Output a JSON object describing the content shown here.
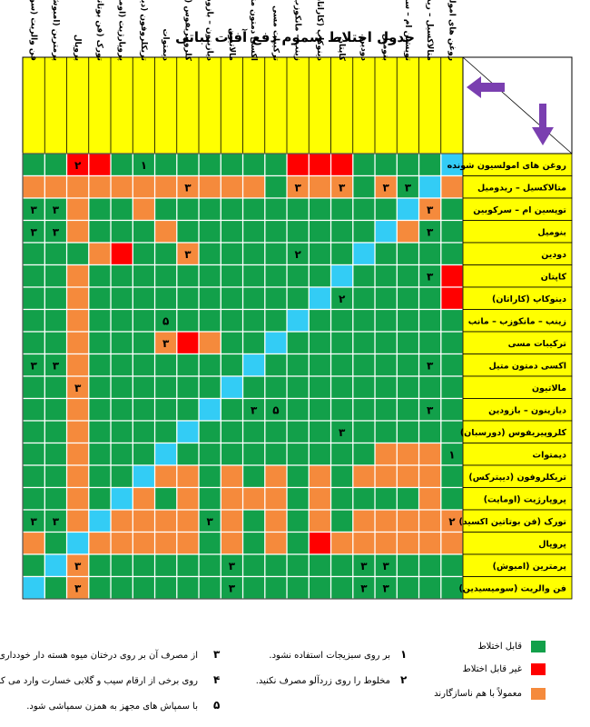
{
  "title": "جدول اختلاط سموم دفع آفات نباتی",
  "products": [
    "روغن های امولسیون شونده",
    "متالاکسیل – ریدومیل",
    "توپسین ام – سرکوبین",
    "بنومیل",
    "دودین",
    "کاپتان",
    "دینوکاپ (کاراتان)",
    "زینب – مانکوزب – مانب",
    "ترکیبات مسی",
    "اکسی دمتون متیل",
    "مالاتیون",
    "دیازینون – بازودین",
    "کلروپیریفوس (دورسبان)",
    "دیمتوات",
    "تریکلروفون (دیپترکس)",
    "پروپارژیت (اومایت)",
    "تورک (فن بوتاتین اکسید)",
    "پروپال",
    "پرمترین (امبوش)",
    "فن والریت (سومیسیدین)"
  ],
  "matrix": [
    "FGGGGRRRGGGGGGGGRRGG",
    "OFGOGOOOGOOOOOOOOOOO",
    "GOFGGGGGGGGGGGOGGOGG",
    "GGOFGGGGGGGGGOGGGOGG",
    "GGGGFGGGGGGGOGGROGGG",
    "RGGGGFGGGGGGGGGGGOGG",
    "RGGGGGFGGGGGGGGGGOGG",
    "GGGGGGGFGGGGGGGGGOGG",
    "GGGGGGGGFGGOROGGGOGG",
    "GGGGGGGGGFGGGGGGGOGG",
    "GGGGGGGGGGFGGGGGGOGG",
    "GGGGGGGGGGGFGGGGGOGG",
    "GGGGGGGGGGGGFGGGGOGG",
    "GOOOGGGGGGGGGFGGGOGG",
    "GOOOOGOGOGOGOOFGGOGG",
    "GOGGGGOGOOOGOGOFGOGG",
    "OOOOOGOGOGOGOOOOFOGG",
    "OOOOOORGOGOGOOOOOFGO",
    "GGGGGGGGGGGGGGGGGOFG",
    "GGGGGGGGGGGGGGGGGOGF"
  ],
  "cell_numbers": [
    {
      "row": 0,
      "col": 14,
      "value": "۱"
    },
    {
      "row": 0,
      "col": 17,
      "value": "۲"
    },
    {
      "row": 1,
      "col": 2,
      "value": "۳"
    },
    {
      "row": 1,
      "col": 3,
      "value": "۳"
    },
    {
      "row": 1,
      "col": 5,
      "value": "۳"
    },
    {
      "row": 1,
      "col": 7,
      "value": "۳"
    },
    {
      "row": 1,
      "col": 12,
      "value": "۳"
    },
    {
      "row": 2,
      "col": 1,
      "value": "۳"
    },
    {
      "row": 2,
      "col": 18,
      "value": "۳"
    },
    {
      "row": 2,
      "col": 19,
      "value": "۳"
    },
    {
      "row": 3,
      "col": 1,
      "value": "۳"
    },
    {
      "row": 3,
      "col": 18,
      "value": "۳"
    },
    {
      "row": 3,
      "col": 19,
      "value": "۳"
    },
    {
      "row": 4,
      "col": 7,
      "value": "۲"
    },
    {
      "row": 4,
      "col": 12,
      "value": "۳"
    },
    {
      "row": 5,
      "col": 1,
      "value": "۳"
    },
    {
      "row": 6,
      "col": 5,
      "value": "۲"
    },
    {
      "row": 7,
      "col": 13,
      "value": "۵"
    },
    {
      "row": 8,
      "col": 13,
      "value": "۳"
    },
    {
      "row": 9,
      "col": 1,
      "value": "۳"
    },
    {
      "row": 9,
      "col": 18,
      "value": "۳"
    },
    {
      "row": 9,
      "col": 19,
      "value": "۳"
    },
    {
      "row": 10,
      "col": 17,
      "value": "۳"
    },
    {
      "row": 11,
      "col": 1,
      "value": "۳"
    },
    {
      "row": 11,
      "col": 8,
      "value": "۵"
    },
    {
      "row": 11,
      "col": 9,
      "value": "۳"
    },
    {
      "row": 12,
      "col": 5,
      "value": "۳"
    },
    {
      "row": 13,
      "col": 0,
      "value": "۱"
    },
    {
      "row": 16,
      "col": 0,
      "value": "۲"
    },
    {
      "row": 16,
      "col": 11,
      "value": "۳"
    },
    {
      "row": 16,
      "col": 18,
      "value": "۳"
    },
    {
      "row": 16,
      "col": 19,
      "value": "۳"
    },
    {
      "row": 18,
      "col": 3,
      "value": "۳"
    },
    {
      "row": 18,
      "col": 4,
      "value": "۳"
    },
    {
      "row": 18,
      "col": 10,
      "value": "۳"
    },
    {
      "row": 18,
      "col": 17,
      "value": "۳"
    },
    {
      "row": 19,
      "col": 3,
      "value": "۳"
    },
    {
      "row": 19,
      "col": 4,
      "value": "۳"
    },
    {
      "row": 19,
      "col": 10,
      "value": "۳"
    },
    {
      "row": 19,
      "col": 17,
      "value": "۳"
    }
  ],
  "colors": {
    "compatible": "#12a04a",
    "incompatible": "#ff0000",
    "partial": "#f58a3c",
    "self": "#33ccf5",
    "header_bg": "#ffff00",
    "arrow": "#7a3fb0"
  },
  "legend": [
    {
      "key": "compatible",
      "label": "قابل اختلاط"
    },
    {
      "key": "incompatible",
      "label": "غیر قابل اختلاط"
    },
    {
      "key": "partial",
      "label": "معمولاً با هم ناسازگارند"
    }
  ],
  "notes": [
    {
      "num": "۱",
      "text": "بر روی سبزیجات استفاده نشود."
    },
    {
      "num": "۲",
      "text": "مخلوط را روی زردآلو مصرف نکنید."
    },
    {
      "num": "۳",
      "text": "از مصرف آن بر روی درختان میوه هسته دار خودداری شود."
    },
    {
      "num": "۴",
      "text": "روی برخی از ارقام سیب و گلابی خسارت وارد می کند."
    },
    {
      "num": "۵",
      "text": "با سمپاش های مجهز به همزن سمپاشی شود."
    }
  ]
}
